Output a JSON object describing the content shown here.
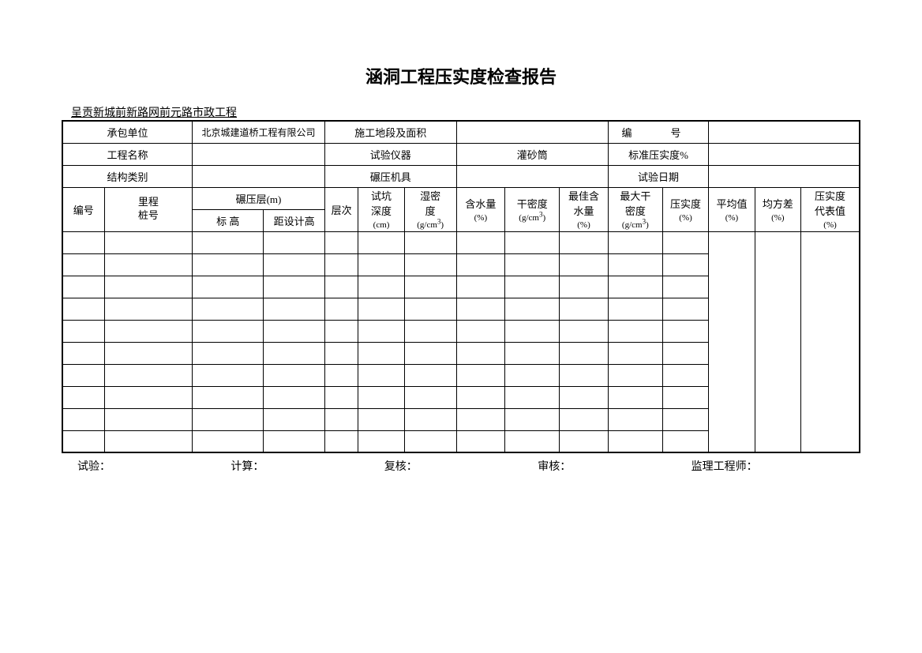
{
  "title": "涵洞工程压实度检查报告",
  "subtitle": "呈贡新城前新路网前元路市政工程",
  "meta": {
    "row1": {
      "label1": "承包单位",
      "value1": "北京城建道桥工程有限公司",
      "label2": "施工地段及面积",
      "value2": "",
      "label3": "编　号",
      "value3": ""
    },
    "row2": {
      "label1": "工程名称",
      "value1": "",
      "label2": "试验仪器",
      "value2": "灌砂筒",
      "label3": "标准压实度%",
      "value3": ""
    },
    "row3": {
      "label1": "结构类别",
      "value1": "",
      "label2": "碾压机具",
      "value2": "",
      "label3": "试验日期",
      "value3": ""
    }
  },
  "headers": {
    "col1": "编号",
    "col2": "里程\n桩号",
    "col3_group": "碾压层(m)",
    "col3a": "标 高",
    "col3b": "距设计高",
    "col4": "层次",
    "col5": "试坑深度",
    "col5_unit": "(cm)",
    "col6": "湿密度",
    "col6_unit": "(g/cm³)",
    "col7": "含水量",
    "col7_unit": "(%)",
    "col8": "干密度",
    "col8_unit": "(g/cm³)",
    "col9": "最佳含水量",
    "col9_unit": "(%)",
    "col10": "最大干密度",
    "col10_unit": "(g/cm³)",
    "col11": "压实度",
    "col11_unit": "(%)",
    "col12": "平均值",
    "col12_unit": "(%)",
    "col13": "均方差",
    "col13_unit": "(%)",
    "col14": "压实度代表值",
    "col14_unit": "(%)"
  },
  "footer": {
    "f1": "试验：",
    "f2": "计算：",
    "f3": "复核：",
    "f4": "审核：",
    "f5": "监理工程师："
  },
  "data_rows": 10
}
